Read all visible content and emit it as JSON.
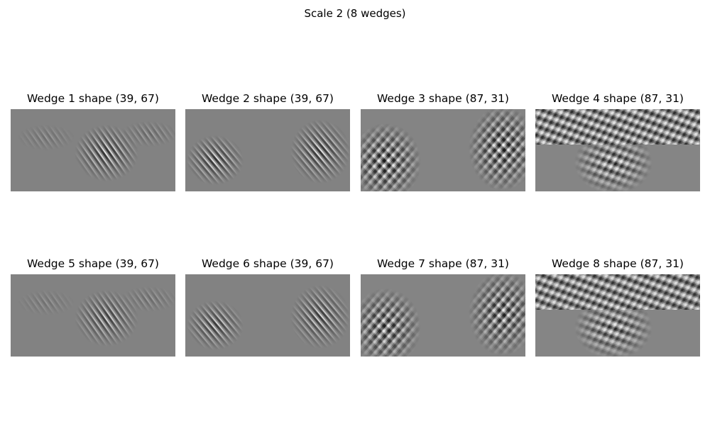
{
  "figure": {
    "title": "Scale 2 (8 wedges)"
  },
  "panels": [
    {
      "title": "Wedge 1 shape (39, 67)"
    },
    {
      "title": "Wedge 2 shape (39, 67)"
    },
    {
      "title": "Wedge 3 shape (87, 31)"
    },
    {
      "title": "Wedge 4 shape (87, 31)"
    },
    {
      "title": "Wedge 5 shape (39, 67)"
    },
    {
      "title": "Wedge 6 shape (39, 67)"
    },
    {
      "title": "Wedge 7 shape (87, 31)"
    },
    {
      "title": "Wedge 8 shape (87, 31)"
    }
  ]
}
